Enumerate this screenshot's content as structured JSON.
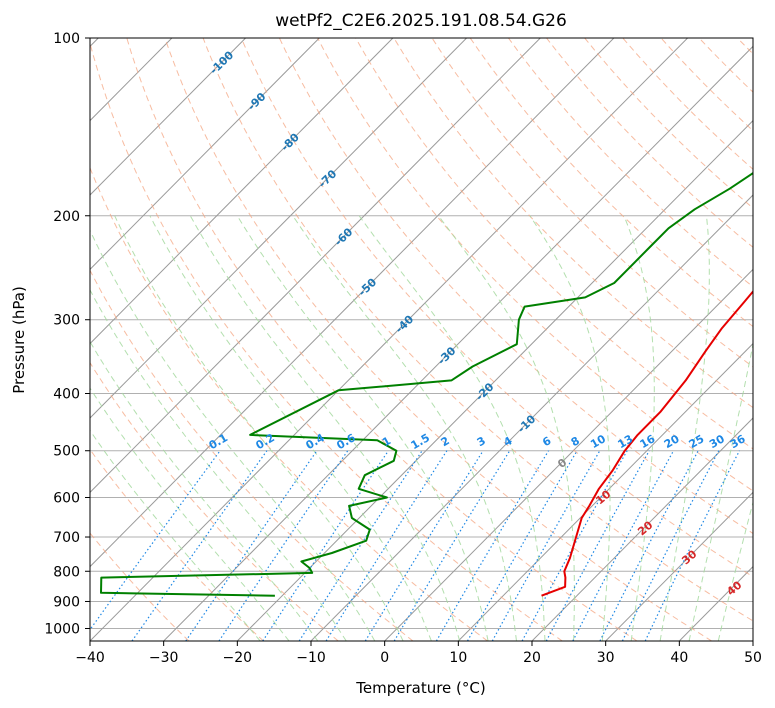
{
  "chart_data": {
    "type": "skew-t",
    "title": "wetPf2_C2E6.2025.191.08.54.G26",
    "xlabel": "Temperature (°C)",
    "ylabel": "Pressure (hPa)",
    "xlim": [
      -40,
      50
    ],
    "ylim": [
      1050,
      100
    ],
    "y_scale": "log",
    "grid": true,
    "x_ticks": [
      -40,
      -30,
      -20,
      -10,
      0,
      10,
      20,
      30,
      40,
      50
    ],
    "y_ticks": [
      100,
      200,
      300,
      400,
      500,
      600,
      700,
      800,
      900,
      1000
    ],
    "colors": {
      "temperature": "#e60000",
      "dewpoint": "#008000",
      "isotherm": "#999999",
      "dry_adiabat": "#f4a582",
      "moist_adiabat": "#a6d9a0",
      "mixing_ratio": "#1e88e5",
      "isotherm_label": "#1f77b4",
      "dry_adiabat_label": "#d62728"
    },
    "isotherm_labels": [
      "-100",
      "-90",
      "-80",
      "-70",
      "-60",
      "-50",
      "-40",
      "-30",
      "-20",
      "-10",
      "0",
      "10",
      "20",
      "30",
      "40"
    ],
    "mixing_ratio_labels": [
      "0.1",
      "0.2",
      "0.4",
      "0.6",
      "1",
      "1.5",
      "2",
      "3",
      "4",
      "6",
      "8",
      "10",
      "13",
      "16",
      "20",
      "25",
      "30",
      "36"
    ],
    "series": [
      {
        "name": "Temperature",
        "points": [
          [
            880,
            15.2
          ],
          [
            850,
            17.2
          ],
          [
            820,
            16.0
          ],
          [
            800,
            15.0
          ],
          [
            760,
            14.0
          ],
          [
            700,
            12.0
          ],
          [
            650,
            10.2
          ],
          [
            620,
            9.6
          ],
          [
            580,
            8.6
          ],
          [
            540,
            8.0
          ],
          [
            500,
            7.0
          ],
          [
            470,
            6.6
          ],
          [
            430,
            6.6
          ],
          [
            380,
            5.8
          ],
          [
            340,
            4.6
          ],
          [
            310,
            3.7
          ],
          [
            280,
            3.2
          ],
          [
            250,
            2.6
          ],
          [
            225,
            3.0
          ],
          [
            205,
            3.4
          ],
          [
            185,
            3.9
          ],
          [
            165,
            5.3
          ],
          [
            145,
            6.7
          ],
          [
            130,
            7.8
          ],
          [
            118,
            9.1
          ],
          [
            108,
            11.5
          ],
          [
            100,
            13.3
          ]
        ]
      },
      {
        "name": "Dewpoint",
        "points": [
          [
            880,
            -21
          ],
          [
            870,
            -45
          ],
          [
            820,
            -47
          ],
          [
            805,
            -19
          ],
          [
            790,
            -20
          ],
          [
            770,
            -22
          ],
          [
            745,
            -19
          ],
          [
            710,
            -16
          ],
          [
            680,
            -17
          ],
          [
            650,
            -21
          ],
          [
            620,
            -23
          ],
          [
            600,
            -19
          ],
          [
            580,
            -24
          ],
          [
            550,
            -25
          ],
          [
            520,
            -23
          ],
          [
            500,
            -24
          ],
          [
            480,
            -28
          ],
          [
            470,
            -46
          ],
          [
            395,
            -40
          ],
          [
            380,
            -26
          ],
          [
            360,
            -25
          ],
          [
            330,
            -22
          ],
          [
            300,
            -25
          ],
          [
            285,
            -26
          ],
          [
            275,
            -19
          ],
          [
            260,
            -17
          ],
          [
            245,
            -17
          ],
          [
            225,
            -17
          ],
          [
            210,
            -17
          ],
          [
            195,
            -16
          ],
          [
            180,
            -14
          ],
          [
            170,
            -13
          ],
          [
            158,
            -12
          ],
          [
            148,
            -10
          ],
          [
            135,
            -7
          ],
          [
            120,
            -3
          ],
          [
            112,
            -2
          ],
          [
            105,
            -1
          ],
          [
            100,
            0
          ]
        ]
      }
    ]
  }
}
